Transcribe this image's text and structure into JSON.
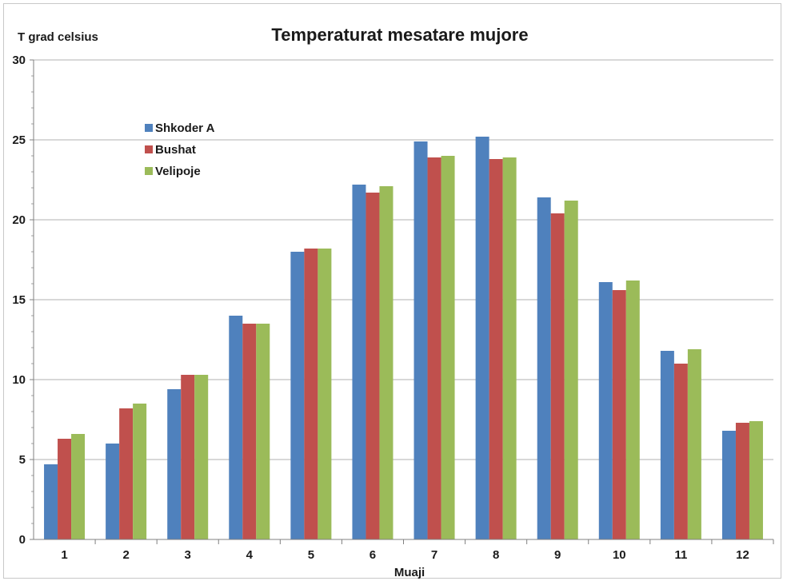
{
  "chart_data": {
    "type": "bar",
    "title": "Temperaturat mesatare mujore",
    "ylabel": "T grad celsius",
    "xlabel": "Muaji",
    "categories": [
      "1",
      "2",
      "3",
      "4",
      "5",
      "6",
      "7",
      "8",
      "9",
      "10",
      "11",
      "12"
    ],
    "ylim": [
      0,
      30
    ],
    "yticks": [
      0,
      5,
      10,
      15,
      20,
      25,
      30
    ],
    "grid": true,
    "legend_position": "top-left",
    "series": [
      {
        "name": "Shkoder A",
        "color": "#4f81bd",
        "values": [
          4.7,
          6.0,
          9.4,
          14.0,
          18.0,
          22.2,
          24.9,
          25.2,
          21.4,
          16.1,
          11.8,
          6.8
        ]
      },
      {
        "name": "Bushat",
        "color": "#c0504d",
        "values": [
          6.3,
          8.2,
          10.3,
          13.5,
          18.2,
          21.7,
          23.9,
          23.8,
          20.4,
          15.6,
          11.0,
          7.3
        ]
      },
      {
        "name": "Velipoje",
        "color": "#9bbb59",
        "values": [
          6.6,
          8.5,
          10.3,
          13.5,
          18.2,
          22.1,
          24.0,
          23.9,
          21.2,
          16.2,
          11.9,
          7.4
        ]
      }
    ]
  }
}
